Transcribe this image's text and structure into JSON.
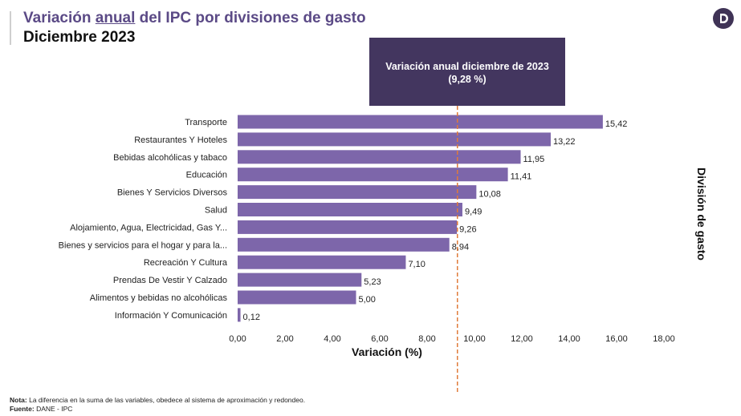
{
  "header": {
    "title_pre": "Variación ",
    "title_underlined": "anual",
    "title_post": " del IPC por divisiones de gasto",
    "subtitle": "Diciembre 2023"
  },
  "callout": {
    "line1": "Variación anual diciembre de 2023",
    "line2": "(9,28 %)"
  },
  "footer": {
    "note_label": "Nota:",
    "note_text": " La diferencia en la suma de las variables, obedece al sistema de aproximación y redondeo.",
    "source_label": "Fuente:",
    "source_text": " DANE - IPC"
  },
  "logo_icon": "dane-logo-icon",
  "chart_data": {
    "type": "bar",
    "orientation": "horizontal",
    "categories": [
      "Transporte",
      "Restaurantes Y Hoteles",
      "Bebidas alcohólicas y tabaco",
      "Educación",
      "Bienes Y Servicios Diversos",
      "Salud",
      "Alojamiento, Agua, Electricidad, Gas Y...",
      "Bienes y servicios para el hogar y para la...",
      "Recreación Y Cultura",
      "Prendas De Vestir Y Calzado",
      "Alimentos y bebidas no alcohólicas",
      "Información Y Comunicación"
    ],
    "values": [
      15.42,
      13.22,
      11.95,
      11.41,
      10.08,
      9.49,
      9.26,
      8.94,
      7.1,
      5.23,
      5.0,
      0.12
    ],
    "value_labels": [
      "15,42",
      "13,22",
      "11,95",
      "11,41",
      "10,08",
      "9,49",
      "9,26",
      "8,94",
      "7,10",
      "5,23",
      "5,00",
      "0,12"
    ],
    "xlabel": "Variación (%)",
    "ylabel": "División de gasto",
    "xlim": [
      0,
      18
    ],
    "xticks": [
      0,
      2,
      4,
      6,
      8,
      10,
      12,
      14,
      16,
      18
    ],
    "xtick_labels": [
      "0,00",
      "2,00",
      "4,00",
      "6,00",
      "8,00",
      "10,00",
      "12,00",
      "14,00",
      "16,00",
      "18,00"
    ],
    "reference_line": {
      "value": 9.28,
      "style": "dashed"
    },
    "grid": false,
    "colors": {
      "bar": "#7d66aa",
      "reference_line": "#e07b3a",
      "callout": "#43365f",
      "title": "#5b4a86"
    }
  }
}
